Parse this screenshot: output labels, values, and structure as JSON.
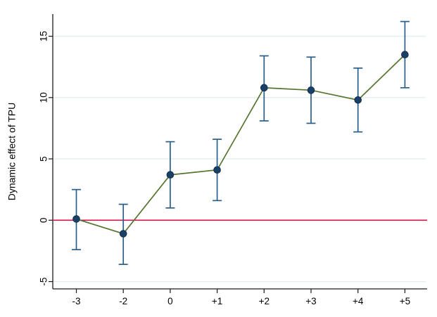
{
  "figure": {
    "background": "#ffffff"
  },
  "chart_data": {
    "type": "line",
    "subtype": "event-study point estimates with 95% confidence-interval error bars",
    "title": "",
    "xlabel": "",
    "ylabel": "Dynamic effect of TPU",
    "categories": [
      "-3",
      "-2",
      "0",
      "+1",
      "+2",
      "+3",
      "+4",
      "+5"
    ],
    "series": [
      {
        "name": "Dynamic effect of TPU",
        "values": [
          0.1,
          -1.1,
          3.7,
          4.1,
          10.8,
          10.6,
          9.8,
          13.5
        ],
        "ci_low": [
          -2.4,
          -3.6,
          1.0,
          1.6,
          8.1,
          7.9,
          7.2,
          10.8
        ],
        "ci_high": [
          2.5,
          1.3,
          6.4,
          6.6,
          13.4,
          13.3,
          12.4,
          16.2
        ]
      }
    ],
    "y_ticks": [
      -5,
      0,
      5,
      10,
      15
    ],
    "ylim": [
      -5.7,
      16.9
    ],
    "reference_line_y": 0,
    "grid": true,
    "legend_position": "none",
    "colors": {
      "marker": "#1a4066",
      "error_bar": "#2a5f8a",
      "trend_line": "#55752f",
      "zero_line": "#d0144e",
      "gridline": "#e2efed",
      "axis": "#1a1a1a",
      "tick_label": "#000000"
    }
  }
}
